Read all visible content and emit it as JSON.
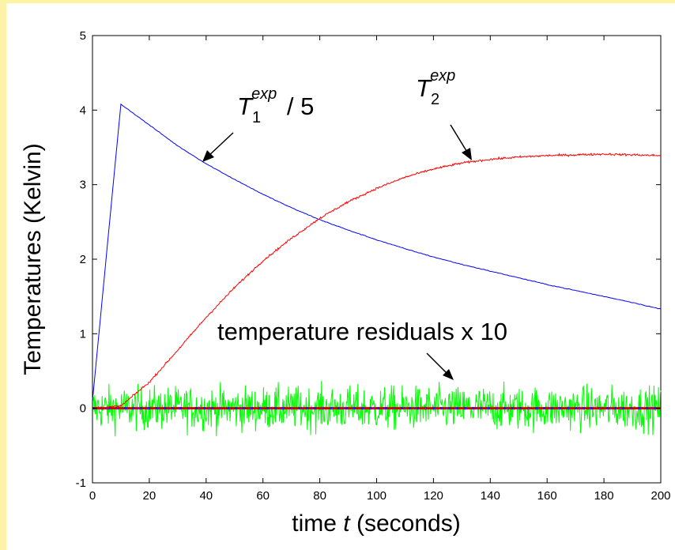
{
  "chart_data": {
    "type": "line",
    "xlabel": {
      "pre": "time ",
      "var": "t",
      "post": " (seconds)"
    },
    "ylabel": "Temperatures (Kelvin)",
    "xlim": [
      0,
      200
    ],
    "ylim": [
      -1,
      5
    ],
    "x_ticks": [
      "0",
      "20",
      "40",
      "60",
      "80",
      "100",
      "120",
      "140",
      "160",
      "180",
      "200"
    ],
    "y_ticks": [
      "-1",
      "0",
      "1",
      "2",
      "3",
      "4",
      "5"
    ],
    "grid": false,
    "series": [
      {
        "color": "#0000ff",
        "x": [
          0,
          10,
          20,
          30,
          40,
          50,
          60,
          70,
          80,
          90,
          100,
          110,
          120,
          130,
          140,
          150,
          160,
          170,
          180,
          190,
          200
        ],
        "y": [
          0.1,
          4.08,
          3.8,
          3.52,
          3.28,
          3.07,
          2.87,
          2.69,
          2.53,
          2.39,
          2.26,
          2.14,
          2.03,
          1.93,
          1.84,
          1.75,
          1.66,
          1.58,
          1.5,
          1.42,
          1.33
        ]
      },
      {
        "color": "#ff0000",
        "x": [
          0,
          10,
          20,
          30,
          40,
          50,
          60,
          70,
          80,
          90,
          100,
          110,
          120,
          130,
          140,
          150,
          160,
          170,
          180,
          190,
          200
        ],
        "y": [
          0.0,
          0.03,
          0.35,
          0.78,
          1.22,
          1.62,
          1.98,
          2.28,
          2.55,
          2.77,
          2.95,
          3.1,
          3.21,
          3.29,
          3.34,
          3.37,
          3.39,
          3.4,
          3.41,
          3.4,
          3.39
        ]
      },
      {
        "color": "#00ff00",
        "x": [
          0,
          200
        ],
        "y": [
          0,
          0
        ]
      }
    ],
    "annotations": {
      "t1": {
        "base": "T",
        "sub": "1",
        "sup": "exp",
        "suffix": " / 5"
      },
      "t2": {
        "base": "T",
        "sub": "2",
        "sup": "exp"
      },
      "residuals": "temperature residuals x 10"
    },
    "residual_amplitude": 0.55
  }
}
